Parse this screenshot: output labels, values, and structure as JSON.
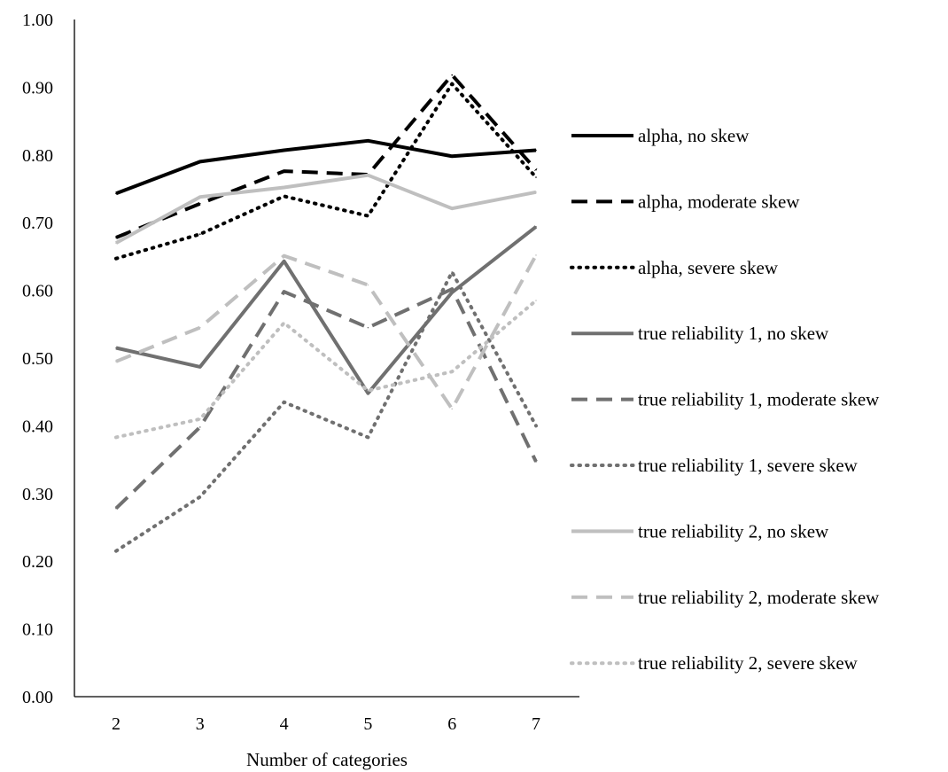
{
  "chart_data": {
    "type": "line",
    "xlabel": "Number of categories",
    "ylabel": "",
    "x": [
      2,
      3,
      4,
      5,
      6,
      7
    ],
    "ylim": [
      0,
      1
    ],
    "yticks": [
      "0.00",
      "0.10",
      "0.20",
      "0.30",
      "0.40",
      "0.50",
      "0.60",
      "0.70",
      "0.80",
      "0.90",
      "1.00"
    ],
    "grid": false,
    "legend_position": "right",
    "series": [
      {
        "name": "alpha, no skew",
        "values": [
          0.743,
          0.79,
          0.807,
          0.821,
          0.798,
          0.807
        ],
        "color": "#000000",
        "dash": "solid"
      },
      {
        "name": "alpha, moderate skew",
        "values": [
          0.678,
          0.728,
          0.776,
          0.771,
          0.918,
          0.778
        ],
        "color": "#000000",
        "dash": "dashed"
      },
      {
        "name": "alpha, severe skew",
        "values": [
          0.647,
          0.683,
          0.739,
          0.71,
          0.905,
          0.767
        ],
        "color": "#000000",
        "dash": "dotted"
      },
      {
        "name": "true reliability 1, no skew",
        "values": [
          0.515,
          0.487,
          0.643,
          0.448,
          0.597,
          0.694
        ],
        "color": "#707070",
        "dash": "solid"
      },
      {
        "name": "true reliability 1, moderate skew",
        "values": [
          0.278,
          0.398,
          0.598,
          0.545,
          0.602,
          0.347
        ],
        "color": "#707070",
        "dash": "dashed"
      },
      {
        "name": "true reliability 1, severe skew",
        "values": [
          0.215,
          0.295,
          0.435,
          0.383,
          0.627,
          0.4
        ],
        "color": "#707070",
        "dash": "dotted"
      },
      {
        "name": "true reliability 2, no skew",
        "values": [
          0.67,
          0.738,
          0.752,
          0.77,
          0.721,
          0.745
        ],
        "color": "#bfbfbf",
        "dash": "solid"
      },
      {
        "name": "true reliability 2, moderate skew",
        "values": [
          0.495,
          0.545,
          0.651,
          0.608,
          0.425,
          0.652
        ],
        "color": "#bfbfbf",
        "dash": "dashed"
      },
      {
        "name": "true reliability 2, severe skew",
        "values": [
          0.383,
          0.41,
          0.552,
          0.452,
          0.48,
          0.585
        ],
        "color": "#bfbfbf",
        "dash": "dotted"
      }
    ]
  }
}
